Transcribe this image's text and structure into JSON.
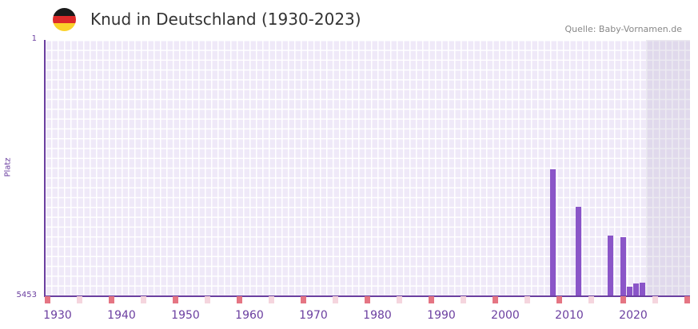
{
  "header": {
    "title": "Knud in Deutschland (1930-2023)",
    "source": "Quelle: Baby-Vornamen.de",
    "flag_colors": [
      "#1a1a1a",
      "#dd2a2a",
      "#fbd22a"
    ]
  },
  "chart_data": {
    "type": "bar",
    "title": "Knud in Deutschland (1930-2023)",
    "ylabel": "Platz",
    "xlabel": "",
    "ylim": [
      5453,
      1
    ],
    "y_ticks": [
      "1",
      "5453"
    ],
    "xlim": [
      1928,
      2028
    ],
    "x_ticks": [
      "1930",
      "1940",
      "1950",
      "1960",
      "1970",
      "1980",
      "1990",
      "2000",
      "2010",
      "2020"
    ],
    "x": [
      2007,
      2011,
      2016,
      2018,
      2019,
      2020,
      2021
    ],
    "values": [
      2760,
      3560,
      4175,
      4210,
      5265,
      5195,
      5180
    ],
    "shaded_from": 2022,
    "colors": {
      "bar": "#8a55c8",
      "marker_strong": "#e57583",
      "marker_light": "#f5d5de"
    }
  }
}
